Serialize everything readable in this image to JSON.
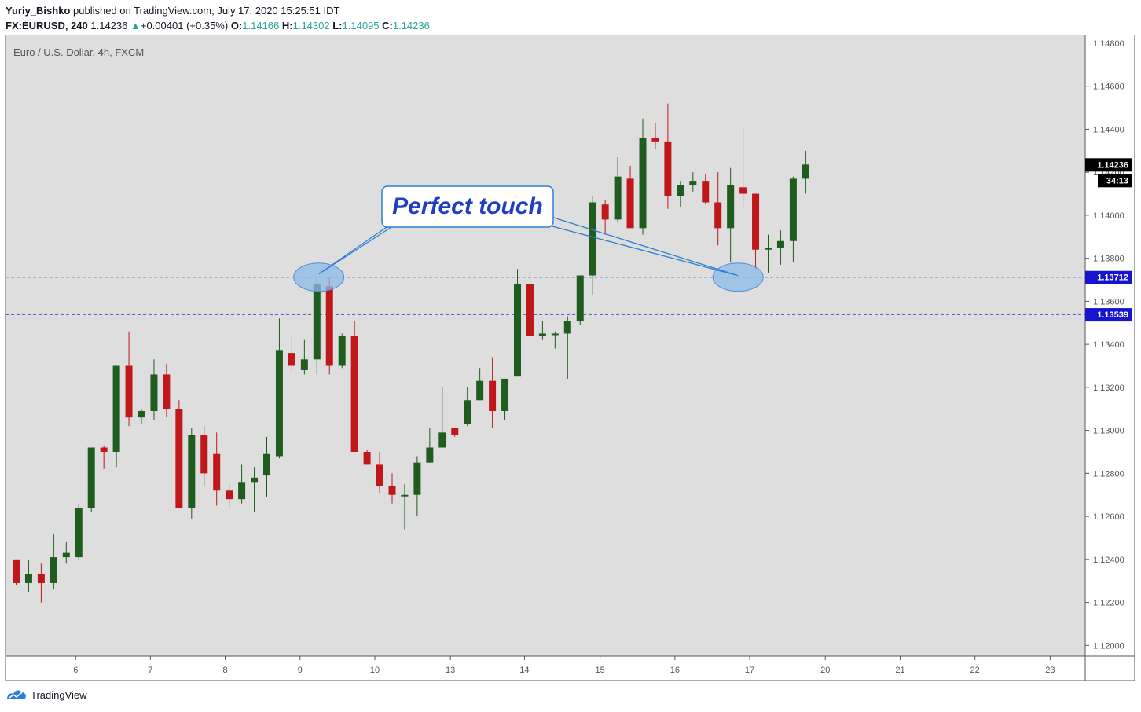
{
  "header": {
    "author": "Yuriy_Bishko",
    "published_text": "published on TradingView.com, July 17, 2020 15:25:51 IDT",
    "symbol": "FX:EURUSD, 240",
    "last": "1.14236",
    "change": "+0.00401 (+0.35%)",
    "o_label": "O:",
    "o": "1.14166",
    "h_label": "H:",
    "h": "1.14302",
    "l_label": "L:",
    "l": "1.14095",
    "c_label": "C:",
    "c": "1.14236"
  },
  "footer": {
    "brand": "TradingView"
  },
  "colors": {
    "bg": "#dedede",
    "up": "#1e5d1e",
    "down": "#c0171b",
    "level": "#1515d0",
    "callout": "#1f3fc2",
    "ellipse": "#8bbbe8"
  },
  "chart_data": {
    "type": "candlestick",
    "title": "Euro / U.S. Dollar, 4h, FXCM",
    "annotation": "Perfect touch",
    "ylim": [
      1.1195,
      1.1484
    ],
    "y_ticks": [
      1.146,
      1.144,
      1.142,
      1.14,
      1.138,
      1.136,
      1.134,
      1.132,
      1.13,
      1.128,
      1.126,
      1.124,
      1.122,
      1.12
    ],
    "y_top_partial": "1.14800",
    "x_ticks": [
      {
        "label": "6",
        "pos": 4.75
      },
      {
        "label": "7",
        "pos": 10.71
      },
      {
        "label": "8",
        "pos": 16.68
      },
      {
        "label": "9",
        "pos": 22.65
      },
      {
        "label": "10",
        "pos": 28.62
      },
      {
        "label": "13",
        "pos": 34.65
      },
      {
        "label": "14",
        "pos": 40.56
      },
      {
        "label": "15",
        "pos": 46.59
      },
      {
        "label": "16",
        "pos": 52.56
      },
      {
        "label": "17",
        "pos": 58.53
      },
      {
        "label": "20",
        "pos": 64.56
      },
      {
        "label": "21",
        "pos": 70.53
      },
      {
        "label": "22",
        "pos": 76.5
      },
      {
        "label": "23",
        "pos": 82.5
      }
    ],
    "levels": [
      {
        "value": 1.13712,
        "label": "1.13712",
        "type": "resistance"
      },
      {
        "value": 1.13539,
        "label": "1.13539",
        "type": "support"
      }
    ],
    "price_label": "1.14236",
    "countdown": "34:13",
    "candles": [
      [
        1.124,
        1.124,
        1.1228,
        1.1229
      ],
      [
        1.1229,
        1.124,
        1.1225,
        1.1233
      ],
      [
        1.1233,
        1.1238,
        1.122,
        1.1229
      ],
      [
        1.1229,
        1.1252,
        1.1226,
        1.1241
      ],
      [
        1.1241,
        1.1248,
        1.1238,
        1.1243
      ],
      [
        1.1241,
        1.1266,
        1.124,
        1.1264
      ],
      [
        1.1264,
        1.1292,
        1.1262,
        1.1292
      ],
      [
        1.1292,
        1.1293,
        1.1282,
        1.129
      ],
      [
        1.129,
        1.133,
        1.1283,
        1.133
      ],
      [
        1.133,
        1.1346,
        1.1302,
        1.1306
      ],
      [
        1.1306,
        1.131,
        1.1303,
        1.1309
      ],
      [
        1.1309,
        1.1333,
        1.1305,
        1.1326
      ],
      [
        1.1326,
        1.1331,
        1.1306,
        1.131
      ],
      [
        1.131,
        1.1314,
        1.1264,
        1.1264
      ],
      [
        1.1264,
        1.1301,
        1.1259,
        1.1298
      ],
      [
        1.1298,
        1.1302,
        1.1274,
        1.128
      ],
      [
        1.1289,
        1.1299,
        1.1265,
        1.1272
      ],
      [
        1.1272,
        1.1275,
        1.1264,
        1.1268
      ],
      [
        1.1268,
        1.1284,
        1.1266,
        1.1276
      ],
      [
        1.1276,
        1.1283,
        1.1262,
        1.1278
      ],
      [
        1.1279,
        1.1297,
        1.1269,
        1.1289
      ],
      [
        1.1288,
        1.1352,
        1.1287,
        1.1337
      ],
      [
        1.1336,
        1.1344,
        1.1327,
        1.133
      ],
      [
        1.1328,
        1.1342,
        1.1326,
        1.1333
      ],
      [
        1.1333,
        1.1371,
        1.1326,
        1.1368
      ],
      [
        1.1367,
        1.1371,
        1.1326,
        1.133
      ],
      [
        1.133,
        1.1345,
        1.1329,
        1.1344
      ],
      [
        1.1344,
        1.1351,
        1.129,
        1.129
      ],
      [
        1.129,
        1.1291,
        1.1284,
        1.1284
      ],
      [
        1.1284,
        1.129,
        1.1271,
        1.1274
      ],
      [
        1.1274,
        1.128,
        1.1266,
        1.127
      ],
      [
        1.127,
        1.1275,
        1.1254,
        1.127
      ],
      [
        1.127,
        1.1288,
        1.126,
        1.1285
      ],
      [
        1.1285,
        1.1301,
        1.1286,
        1.1292
      ],
      [
        1.1292,
        1.132,
        1.1292,
        1.1299
      ],
      [
        1.1301,
        1.1301,
        1.1297,
        1.1298
      ],
      [
        1.1303,
        1.132,
        1.1302,
        1.1314
      ],
      [
        1.1314,
        1.1329,
        1.1314,
        1.1323
      ],
      [
        1.1323,
        1.1334,
        1.1301,
        1.1309
      ],
      [
        1.1309,
        1.1324,
        1.1305,
        1.1324
      ],
      [
        1.1325,
        1.1375,
        1.1325,
        1.1368
      ],
      [
        1.1368,
        1.1374,
        1.1345,
        1.1344
      ],
      [
        1.1344,
        1.1351,
        1.1342,
        1.1345
      ],
      [
        1.1345,
        1.1346,
        1.1338,
        1.1345
      ],
      [
        1.1345,
        1.1353,
        1.1324,
        1.1351
      ],
      [
        1.1351,
        1.1372,
        1.1349,
        1.1372
      ],
      [
        1.1372,
        1.1409,
        1.1363,
        1.1406
      ],
      [
        1.1405,
        1.1407,
        1.1391,
        1.1398
      ],
      [
        1.1398,
        1.1427,
        1.1397,
        1.1418
      ],
      [
        1.1417,
        1.1423,
        1.1394,
        1.1394
      ],
      [
        1.1394,
        1.1445,
        1.1391,
        1.1436
      ],
      [
        1.1436,
        1.1443,
        1.1431,
        1.1434
      ],
      [
        1.1434,
        1.1452,
        1.1403,
        1.1409
      ],
      [
        1.1409,
        1.1416,
        1.1404,
        1.1414
      ],
      [
        1.1414,
        1.142,
        1.1411,
        1.1416
      ],
      [
        1.1416,
        1.1419,
        1.1405,
        1.1406
      ],
      [
        1.1406,
        1.142,
        1.1386,
        1.1394
      ],
      [
        1.1394,
        1.1422,
        1.1378,
        1.1414
      ],
      [
        1.1413,
        1.1441,
        1.1404,
        1.141
      ],
      [
        1.141,
        1.141,
        1.1375,
        1.1384
      ],
      [
        1.1384,
        1.1391,
        1.1373,
        1.1385
      ],
      [
        1.1385,
        1.1393,
        1.1377,
        1.1388
      ],
      [
        1.1388,
        1.1418,
        1.1378,
        1.1417
      ],
      [
        1.1417,
        1.143,
        1.141,
        1.14236
      ]
    ]
  }
}
